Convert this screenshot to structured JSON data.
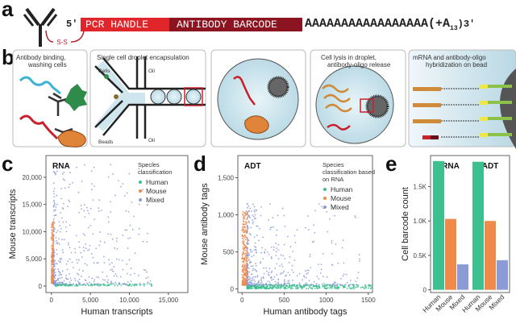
{
  "panel_labels": {
    "a": "a",
    "b": "b",
    "c": "c",
    "d": "d",
    "e": "e"
  },
  "panel_a": {
    "five_prime": "5′",
    "pcr_handle": "PCR HANDLE",
    "antibody_barcode": "ANTIBODY BARCODE",
    "poly_a": "AAAAAAAAAAAAAAAAA",
    "poly_a_tail_prefix": "(+A",
    "poly_a_tail_sub": "13",
    "three_prime": ")3′",
    "disulfide": "S-S",
    "colors": {
      "pcr_handle": "#e0252b",
      "antibody_barcode": "#8b1420"
    }
  },
  "panel_b": {
    "step1": {
      "line1": "Antibody binding,",
      "line2": "washing cells"
    },
    "step2": {
      "title": "Single cell droplet encapsulation",
      "cells": "Cells",
      "beads": "Beads",
      "oil_top": "Oil",
      "oil_bottom": "Oil"
    },
    "step4": {
      "line1": "Cell lysis in droplet,",
      "line2": "antibody-oligo release"
    },
    "step5": {
      "line1": "mRNA and antibody-oligo",
      "line2": "hybridization on bead"
    }
  },
  "chart_data": [
    {
      "type": "scatter",
      "panel": "c",
      "title": "RNA",
      "xlabel": "Human transcripts",
      "ylabel": "Mouse transcripts",
      "xlim": [
        -700,
        17500
      ],
      "ylim": [
        -1200,
        24000
      ],
      "xticks": [
        0,
        5000,
        10000,
        15000
      ],
      "xtick_labels": [
        "0",
        "5,000",
        "10,000",
        "15,000"
      ],
      "yticks": [
        0,
        5000,
        10000,
        15000,
        20000
      ],
      "ytick_labels": [
        "0",
        "5,000",
        "10,000",
        "15,000",
        "20,000"
      ],
      "legend": {
        "title": "Species classification",
        "position": "top-right"
      },
      "series": [
        {
          "name": "Human",
          "color": "#3dbf8f",
          "x_range": [
            500,
            13000
          ],
          "y_range": [
            0,
            400
          ]
        },
        {
          "name": "Mouse",
          "color": "#f08a4b",
          "x_range": [
            0,
            300
          ],
          "y_range": [
            500,
            12000
          ]
        },
        {
          "name": "Mixed",
          "color": "#8c9ad6",
          "x_range": [
            300,
            13000
          ],
          "y_range": [
            300,
            23000
          ]
        }
      ]
    },
    {
      "type": "scatter",
      "panel": "d",
      "title": "ADT",
      "xlabel": "Human antibody tags",
      "ylabel": "Mouse antibody tags",
      "xlim": [
        -50,
        1550
      ],
      "ylim": [
        -50,
        1800
      ],
      "xticks": [
        0,
        500,
        1000,
        1500
      ],
      "xtick_labels": [
        "0",
        "500",
        "1000",
        "1500"
      ],
      "yticks": [
        0,
        500,
        1000,
        1500
      ],
      "ytick_labels": [
        "0",
        "500",
        "1,000",
        "1,500"
      ],
      "legend": {
        "title": "Species classification based on RNA",
        "position": "top-right"
      },
      "series": [
        {
          "name": "Human",
          "color": "#3dbf8f",
          "x_range": [
            60,
            1550
          ],
          "y_range": [
            0,
            60
          ]
        },
        {
          "name": "Mouse",
          "color": "#f08a4b",
          "x_range": [
            0,
            70
          ],
          "y_range": [
            50,
            1050
          ]
        },
        {
          "name": "Mixed",
          "color": "#8c9ad6",
          "x_range": [
            60,
            1400
          ],
          "y_range": [
            50,
            1150
          ]
        }
      ]
    },
    {
      "type": "bar",
      "panel": "e",
      "ylabel": "Cell barcode count",
      "ylim": [
        0,
        1950
      ],
      "yticks": [
        0,
        500,
        1000,
        1500
      ],
      "ytick_labels": [
        "0",
        "0.5K",
        "1.0K",
        "1.5K"
      ],
      "groups": [
        {
          "title": "RNA",
          "categories": [
            "Human",
            "Mouse",
            "Mixed"
          ],
          "values": [
            1870,
            1030,
            370
          ]
        },
        {
          "title": "ADT",
          "categories": [
            "Human",
            "Mouse",
            "Mixed"
          ],
          "values": [
            1860,
            1000,
            430
          ]
        }
      ],
      "colors": [
        "#3dbf8f",
        "#f08a4b",
        "#8c9ad6"
      ]
    }
  ]
}
